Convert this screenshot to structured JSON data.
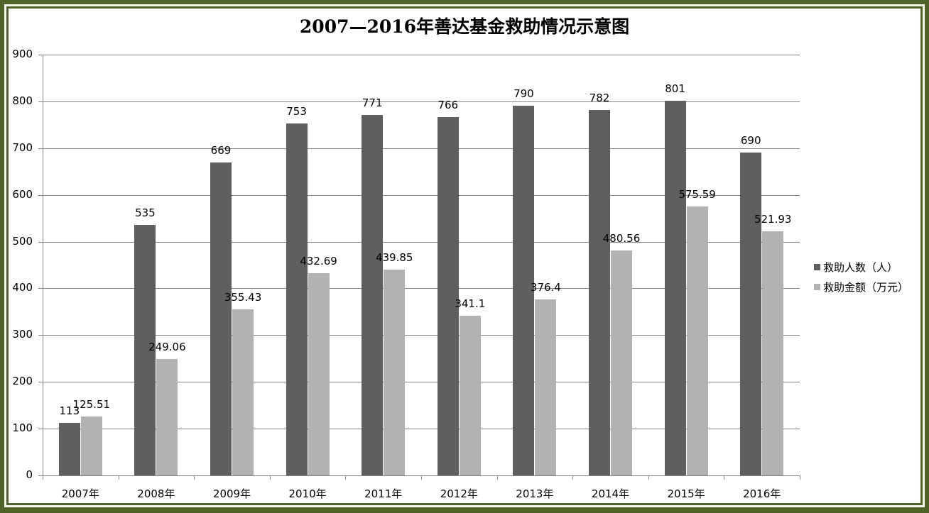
{
  "chart_data": {
    "type": "bar",
    "title": "2007—2016年善达基金救助情况示意图",
    "xlabel": "",
    "ylabel": "",
    "ylim": [
      0,
      900
    ],
    "yticks": [
      0,
      100,
      200,
      300,
      400,
      500,
      600,
      700,
      800,
      900
    ],
    "grid": true,
    "legend_position": "right",
    "categories": [
      "2007年",
      "2008年",
      "2009年",
      "2010年",
      "2011年",
      "2012年",
      "2013年",
      "2014年",
      "2015年",
      "2016年"
    ],
    "series": [
      {
        "name": "救助人数（人）",
        "color": "#5f5f5f",
        "values": [
          113,
          535,
          669,
          753,
          771,
          766,
          790,
          782,
          801,
          690
        ],
        "labels": [
          "113",
          "535",
          "669",
          "753",
          "771",
          "766",
          "790",
          "782",
          "801",
          "690"
        ]
      },
      {
        "name": "救助金额（万元）",
        "color": "#b2b2b2",
        "values": [
          125.51,
          249.06,
          355.43,
          432.69,
          439.85,
          341.1,
          376.4,
          480.56,
          575.59,
          521.93
        ],
        "labels": [
          "125.51",
          "249.06",
          "355.43",
          "432.69",
          "439.85",
          "341.1",
          "376.4",
          "480.56",
          "575.59",
          "521.93"
        ]
      }
    ]
  },
  "frame": {
    "border_color": "#4f6228",
    "gap_color": "#f4f6ea"
  },
  "y_labels": [
    "900",
    "800",
    "700",
    "600",
    "500",
    "400",
    "300",
    "200",
    "100",
    "0"
  ]
}
